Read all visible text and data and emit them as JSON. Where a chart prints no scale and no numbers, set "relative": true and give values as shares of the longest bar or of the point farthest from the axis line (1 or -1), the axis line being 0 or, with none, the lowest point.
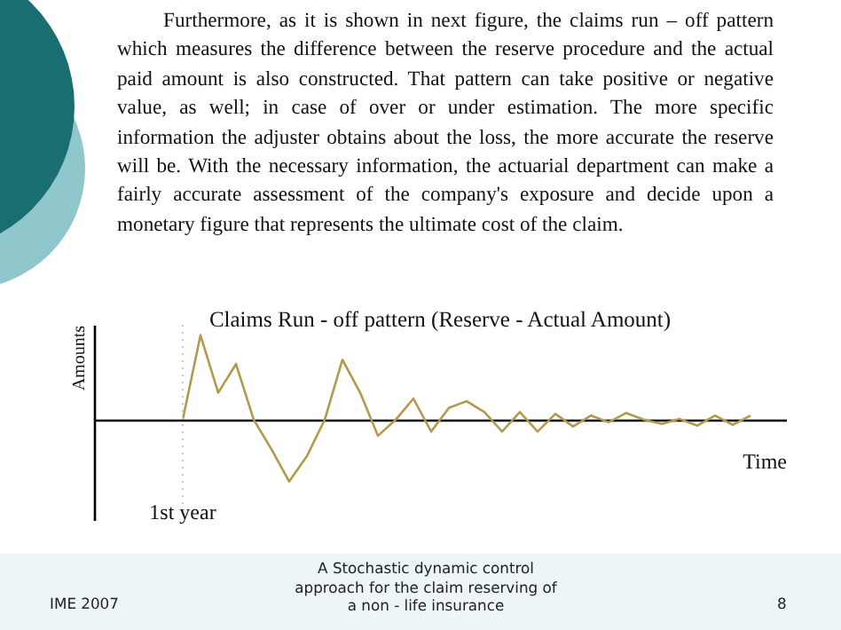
{
  "chart_data": {
    "type": "line",
    "title": "Claims Run - off pattern (Reserve - Actual Amount)",
    "xlabel": "Time",
    "ylabel": "Amounts",
    "relative": true,
    "marker": "none",
    "line_style": "solid",
    "categories": [
      null,
      null,
      null,
      null,
      null,
      null,
      null,
      null,
      null,
      null,
      null,
      null,
      null,
      null,
      null,
      null,
      null,
      null,
      null,
      null,
      null,
      null,
      null,
      null,
      null,
      null,
      null,
      null,
      null,
      null,
      null,
      null,
      null
    ],
    "values": [
      0,
      1.0,
      0.32,
      0.66,
      0,
      -0.35,
      -0.73,
      -0.43,
      0,
      0.71,
      0.32,
      -0.19,
      0,
      0.25,
      -0.14,
      0.14,
      0.22,
      0.09,
      -0.14,
      0.09,
      -0.14,
      0.07,
      -0.08,
      0.05,
      -0.03,
      0.08,
      0,
      -0.05,
      0.01,
      -0.07,
      0.05,
      -0.06,
      0.05
    ],
    "color": "#b3994a",
    "ref_lines": [
      {
        "axis": "x",
        "value": null,
        "label": "1st year",
        "line_style": "dotted",
        "color": "#c8c8c8"
      }
    ],
    "annotations": [
      "Furthermore, as it is shown in next figure, the claims run – off pattern which measures the difference between the reserve procedure and the actual paid amount is also constructed. That pattern can take positive or negative value, as well; in case of over or under estimation. The more specific information the adjuster obtains about the loss, the more accurate the reserve will be. With the necessary information, the actuarial department can make a fairly accurate assessment of the company's exposure and decide upon a monetary figure that represents the ultimate cost of the claim.",
      "IME 2007",
      "A Stochastic dynamic control approach for the claim reserving of a non - life insurance",
      "8"
    ]
  }
}
